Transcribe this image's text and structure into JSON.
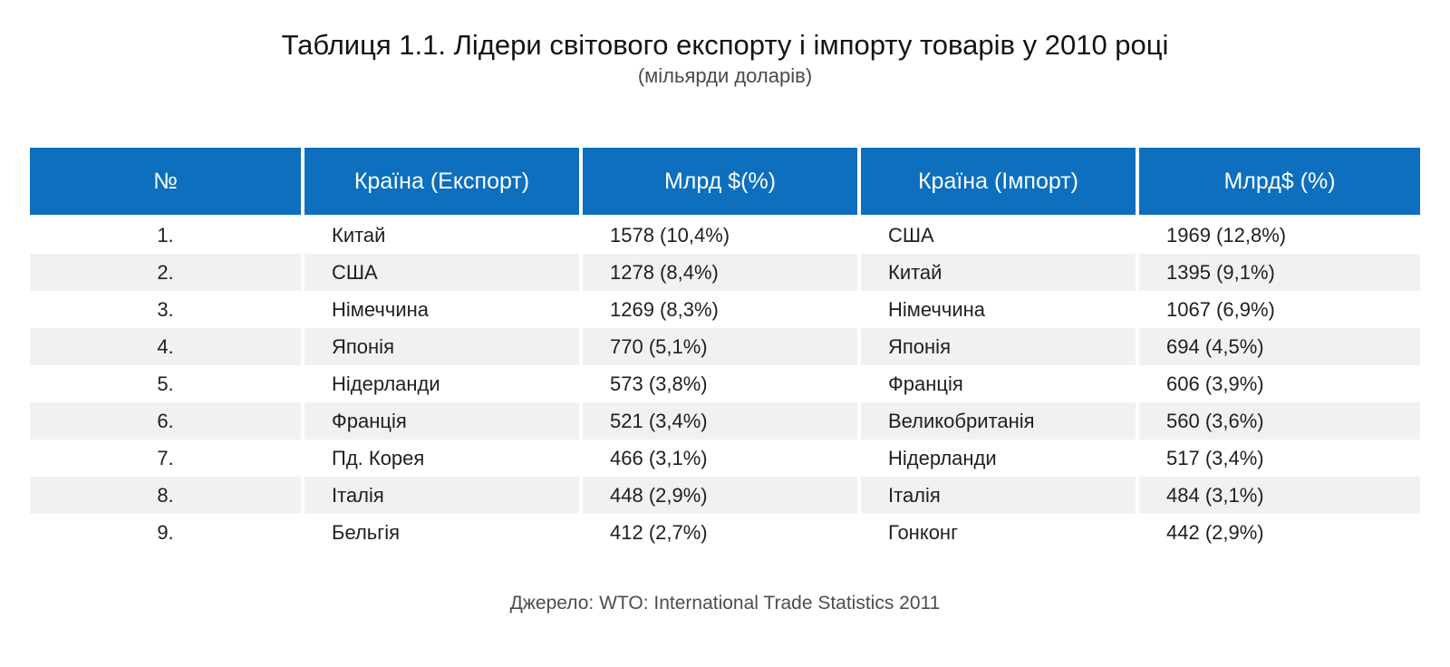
{
  "title": "Таблиця 1.1. Лідери світового експорту і імпорту товарів у 2010 році",
  "subtitle": "(мільярди доларів)",
  "table": {
    "headers": {
      "num": "№",
      "export_country": "Країна (Експорт)",
      "export_value": "Млрд $(%)",
      "import_country": "Країна (Імпорт)",
      "import_value": "Млрд$ (%)"
    },
    "rows": [
      {
        "num": "1.",
        "export_country": "Китай",
        "export_value": "1578 (10,4%)",
        "import_country": "США",
        "import_value": "1969 (12,8%)"
      },
      {
        "num": "2.",
        "export_country": "США",
        "export_value": "1278 (8,4%)",
        "import_country": "Китай",
        "import_value": "1395 (9,1%)"
      },
      {
        "num": "3.",
        "export_country": "Німеччина",
        "export_value": "1269 (8,3%)",
        "import_country": "Німеччина",
        "import_value": "1067 (6,9%)"
      },
      {
        "num": "4.",
        "export_country": "Японія",
        "export_value": "770 (5,1%)",
        "import_country": "Японія",
        "import_value": "694 (4,5%)"
      },
      {
        "num": "5.",
        "export_country": "Нідерланди",
        "export_value": "573 (3,8%)",
        "import_country": "Франція",
        "import_value": "606 (3,9%)"
      },
      {
        "num": "6.",
        "export_country": "Франція",
        "export_value": "521 (3,4%)",
        "import_country": "Великобританія",
        "import_value": "560 (3,6%)"
      },
      {
        "num": "7.",
        "export_country": "Пд. Корея",
        "export_value": "466 (3,1%)",
        "import_country": "Нідерланди",
        "import_value": "517 (3,4%)"
      },
      {
        "num": "8.",
        "export_country": "Італія",
        "export_value": "448 (2,9%)",
        "import_country": "Італія",
        "import_value": "484 (3,1%)"
      },
      {
        "num": "9.",
        "export_country": "Бельгія",
        "export_value": "412 (2,7%)",
        "import_country": "Гонконг",
        "import_value": "442 (2,9%)"
      }
    ]
  },
  "source": "Джерело: WTO: International Trade Statistics 2011",
  "colors": {
    "header_bg": "#0d6fbe",
    "alt_row_bg": "#f1f1f1"
  }
}
